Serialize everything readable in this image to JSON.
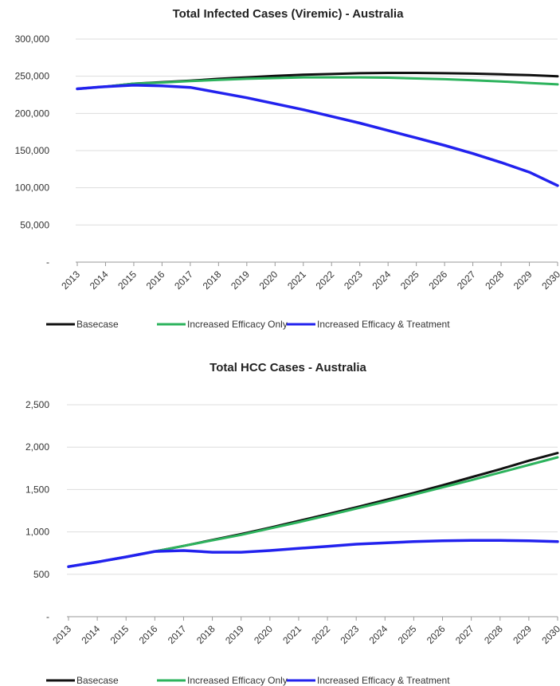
{
  "chart_data": [
    {
      "type": "line",
      "title": "Total Infected Cases (Viremic) - Australia",
      "xlabel": "",
      "ylabel": "",
      "categories": [
        "2013",
        "2014",
        "2015",
        "2016",
        "2017",
        "2018",
        "2019",
        "2020",
        "2021",
        "2022",
        "2023",
        "2024",
        "2025",
        "2026",
        "2027",
        "2028",
        "2029",
        "2030"
      ],
      "ylim": [
        0,
        300000
      ],
      "yticks": [
        0,
        50000,
        100000,
        150000,
        200000,
        250000,
        300000
      ],
      "ytick_labels": [
        "-",
        "50,000",
        "100,000",
        "150,000",
        "200,000",
        "250,000",
        "300,000"
      ],
      "grid": true,
      "legend_position": "bottom",
      "series": [
        {
          "name": "Basecase",
          "color": "#111111",
          "values": [
            233000,
            236000,
            240000,
            242000,
            244000,
            246500,
            248500,
            250500,
            252000,
            253000,
            254000,
            254500,
            254500,
            254000,
            253500,
            252500,
            251500,
            250000
          ]
        },
        {
          "name": "Increased Efficacy Only",
          "color": "#2db35d",
          "values": [
            233000,
            236000,
            240000,
            241500,
            243500,
            245000,
            246500,
            247500,
            248500,
            248500,
            248500,
            248000,
            247000,
            246000,
            244500,
            243000,
            241000,
            239000
          ]
        },
        {
          "name": "Increased Efficacy & Treatment",
          "color": "#2222ee",
          "values": [
            233000,
            236000,
            238000,
            237000,
            235000,
            228000,
            221000,
            213000,
            205000,
            196000,
            187000,
            177000,
            167000,
            157000,
            146000,
            134000,
            121000,
            103000
          ]
        }
      ]
    },
    {
      "type": "line",
      "title": "Total HCC Cases - Australia",
      "xlabel": "",
      "ylabel": "",
      "categories": [
        "2013",
        "2014",
        "2015",
        "2016",
        "2017",
        "2018",
        "2019",
        "2020",
        "2021",
        "2022",
        "2023",
        "2024",
        "2025",
        "2026",
        "2027",
        "2028",
        "2029",
        "2030"
      ],
      "ylim": [
        0,
        2500
      ],
      "yticks": [
        0,
        500,
        1000,
        1500,
        2000,
        2500
      ],
      "ytick_labels": [
        "-",
        "500",
        "1,000",
        "1,500",
        "2,000",
        "2,500"
      ],
      "grid": true,
      "legend_position": "bottom",
      "series": [
        {
          "name": "Basecase",
          "color": "#111111",
          "values": [
            590,
            645,
            705,
            770,
            835,
            905,
            975,
            1050,
            1130,
            1210,
            1290,
            1375,
            1460,
            1550,
            1645,
            1740,
            1840,
            1930
          ]
        },
        {
          "name": "Increased Efficacy Only",
          "color": "#2db35d",
          "values": [
            590,
            645,
            705,
            770,
            835,
            900,
            965,
            1040,
            1115,
            1195,
            1275,
            1355,
            1440,
            1525,
            1610,
            1700,
            1790,
            1880
          ]
        },
        {
          "name": "Increased Efficacy & Treatment",
          "color": "#2222ee",
          "values": [
            590,
            645,
            705,
            770,
            780,
            760,
            760,
            780,
            805,
            830,
            855,
            870,
            885,
            895,
            900,
            900,
            895,
            885
          ]
        }
      ]
    }
  ]
}
